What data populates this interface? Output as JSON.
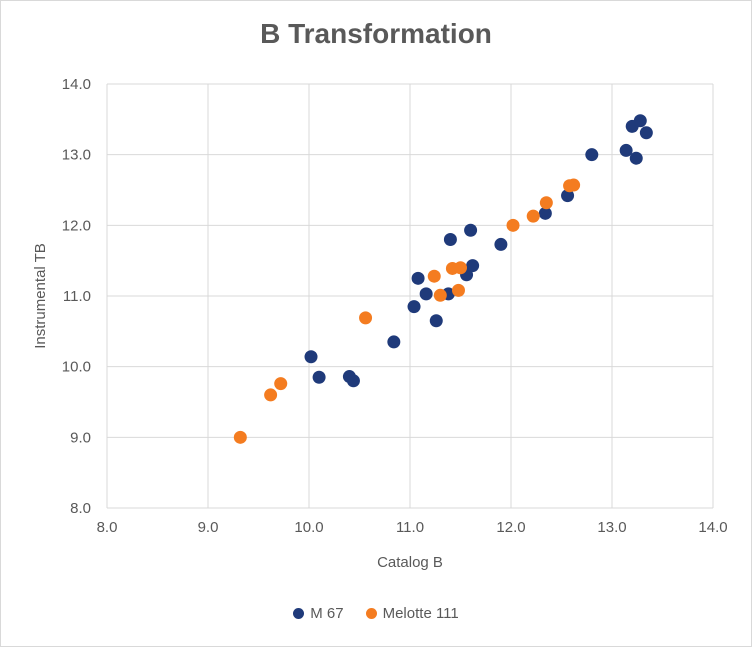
{
  "chart_data": {
    "type": "scatter",
    "title": "B Transformation",
    "xlabel": "Catalog B",
    "ylabel": "Instrumental TB",
    "xlim": [
      8.0,
      14.0
    ],
    "ylim": [
      8.0,
      14.0
    ],
    "xticks": [
      "8.0",
      "9.0",
      "10.0",
      "11.0",
      "12.0",
      "13.0",
      "14.0"
    ],
    "yticks": [
      "8.0",
      "9.0",
      "10.0",
      "11.0",
      "12.0",
      "13.0",
      "14.0"
    ],
    "grid": true,
    "legend_position": "bottom",
    "series": [
      {
        "name": "M 67",
        "color": "#1f3a7a",
        "points": [
          [
            10.02,
            10.14
          ],
          [
            10.1,
            9.85
          ],
          [
            10.4,
            9.86
          ],
          [
            10.44,
            9.8
          ],
          [
            10.84,
            10.35
          ],
          [
            11.04,
            10.85
          ],
          [
            11.08,
            11.25
          ],
          [
            11.16,
            11.03
          ],
          [
            11.26,
            10.65
          ],
          [
            11.38,
            11.03
          ],
          [
            11.4,
            11.8
          ],
          [
            11.56,
            11.3
          ],
          [
            11.6,
            11.93
          ],
          [
            11.62,
            11.43
          ],
          [
            11.9,
            11.73
          ],
          [
            12.34,
            12.17
          ],
          [
            12.56,
            12.42
          ],
          [
            12.8,
            13.0
          ],
          [
            13.14,
            13.06
          ],
          [
            13.2,
            13.4
          ],
          [
            13.24,
            12.95
          ],
          [
            13.28,
            13.48
          ],
          [
            13.34,
            13.31
          ]
        ]
      },
      {
        "name": "Melotte 111",
        "color": "#f47c20",
        "points": [
          [
            9.32,
            9.0
          ],
          [
            9.62,
            9.6
          ],
          [
            9.72,
            9.76
          ],
          [
            10.56,
            10.69
          ],
          [
            11.24,
            11.28
          ],
          [
            11.3,
            11.01
          ],
          [
            11.42,
            11.39
          ],
          [
            11.48,
            11.08
          ],
          [
            11.5,
            11.4
          ],
          [
            12.02,
            12.0
          ],
          [
            12.22,
            12.13
          ],
          [
            12.35,
            12.32
          ],
          [
            12.58,
            12.56
          ],
          [
            12.62,
            12.57
          ]
        ]
      }
    ]
  }
}
